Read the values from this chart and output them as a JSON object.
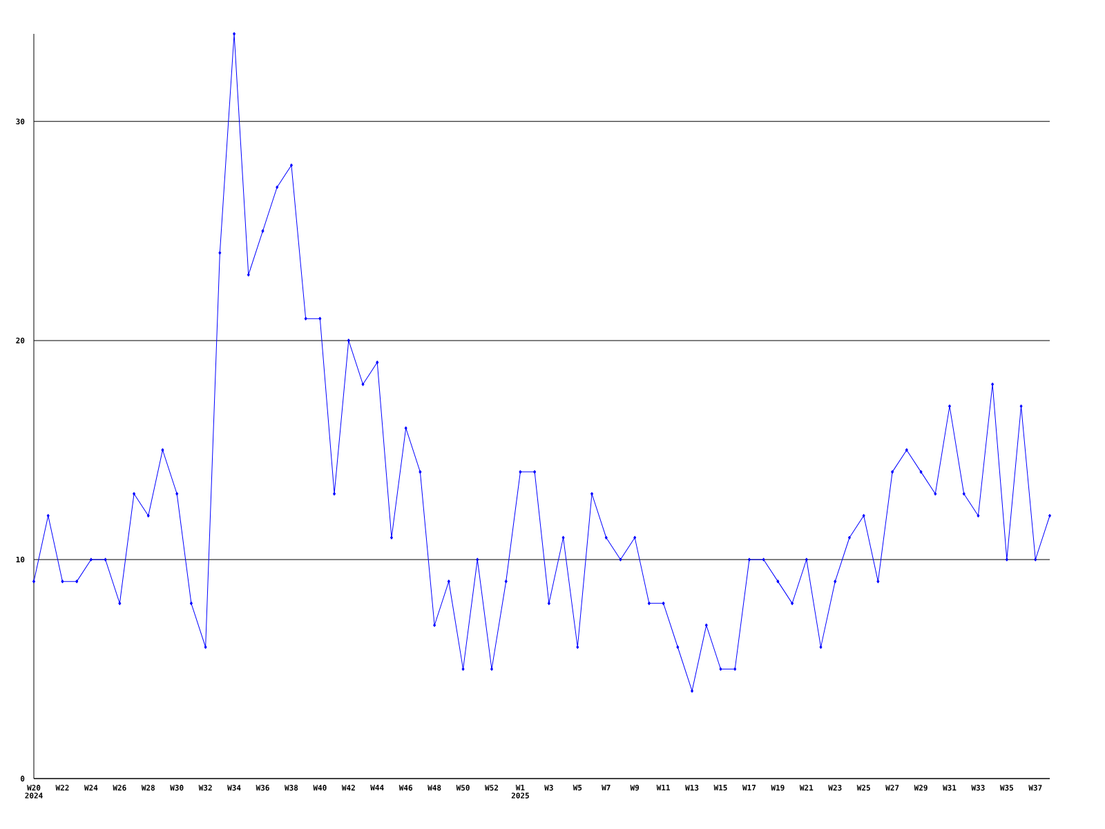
{
  "chart_data": {
    "type": "line",
    "categories": [
      "W20",
      null,
      "W22",
      null,
      "W24",
      null,
      "W26",
      null,
      "W28",
      null,
      "W30",
      null,
      "W32",
      null,
      "W34",
      null,
      "W36",
      null,
      "W38",
      null,
      "W40",
      null,
      "W42",
      null,
      "W44",
      null,
      "W46",
      null,
      "W48",
      null,
      "W50",
      null,
      "W52",
      null,
      "W1",
      null,
      "W3",
      null,
      "W5",
      null,
      "W7",
      null,
      "W9",
      null,
      "W11",
      null,
      "W13",
      null,
      "W15",
      null,
      "W17",
      null,
      "W19",
      null,
      "W21",
      null,
      "W23",
      null,
      "W25",
      null,
      "W27",
      null,
      "W29",
      null,
      "W31",
      null,
      "W33",
      null,
      "W35",
      null,
      "W37",
      null
    ],
    "values": [
      9,
      12,
      9,
      9,
      10,
      10,
      8,
      13,
      12,
      15,
      13,
      8,
      6,
      24,
      34,
      23,
      25,
      27,
      28,
      21,
      21,
      13,
      20,
      18,
      19,
      11,
      16,
      14,
      7,
      9,
      5,
      10,
      5,
      9,
      14,
      14,
      8,
      11,
      6,
      13,
      11,
      10,
      11,
      8,
      8,
      6,
      4,
      7,
      5,
      5,
      10,
      10,
      9,
      8,
      10,
      6,
      9,
      11,
      12,
      9,
      14,
      15,
      14,
      13,
      17,
      13,
      12,
      18,
      10,
      17,
      10,
      12
    ],
    "color": "#0000ff",
    "marker": "diamond",
    "grid": "y",
    "ylim": [
      0,
      34
    ],
    "yticks": [
      0,
      10,
      20,
      30
    ],
    "annotations": [
      "2024",
      "2025"
    ]
  }
}
